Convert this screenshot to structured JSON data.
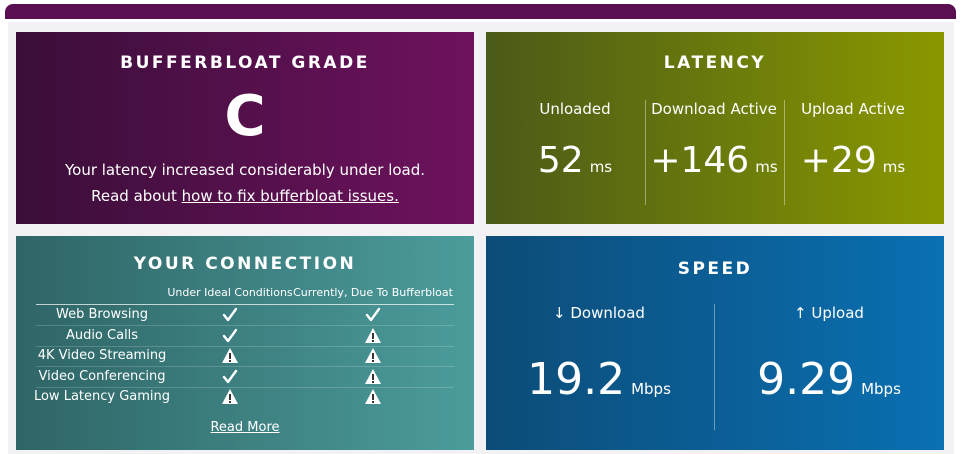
{
  "grade": {
    "title": "BUFFERBLOAT GRADE",
    "grade": "C",
    "message": "Your latency increased considerably under load.",
    "link_prefix": "Read about",
    "link_text": "how to fix bufferbloat issues."
  },
  "latency": {
    "title": "LATENCY",
    "columns": [
      {
        "label": "Unloaded",
        "value": "52",
        "unit": "ms"
      },
      {
        "label": "Download Active",
        "value": "+146",
        "unit": "ms"
      },
      {
        "label": "Upload Active",
        "value": "+29",
        "unit": "ms"
      }
    ]
  },
  "connection": {
    "title": "YOUR CONNECTION",
    "headers": [
      "Under Ideal Conditions",
      "Currently, Due To Bufferbloat"
    ],
    "rows": [
      {
        "name": "Web Browsing",
        "ideal": "ok",
        "current": "ok"
      },
      {
        "name": "Audio Calls",
        "ideal": "ok",
        "current": "warn"
      },
      {
        "name": "4K Video Streaming",
        "ideal": "warn",
        "current": "warn"
      },
      {
        "name": "Video Conferencing",
        "ideal": "ok",
        "current": "warn"
      },
      {
        "name": "Low Latency Gaming",
        "ideal": "warn",
        "current": "warn"
      }
    ],
    "link_text": "Read More"
  },
  "speed": {
    "title": "SPEED",
    "columns": [
      {
        "label": "↓ Download",
        "value": "19.2",
        "unit": "Mbps"
      },
      {
        "label": "↑ Upload",
        "value": "9.29",
        "unit": "Mbps"
      }
    ]
  }
}
